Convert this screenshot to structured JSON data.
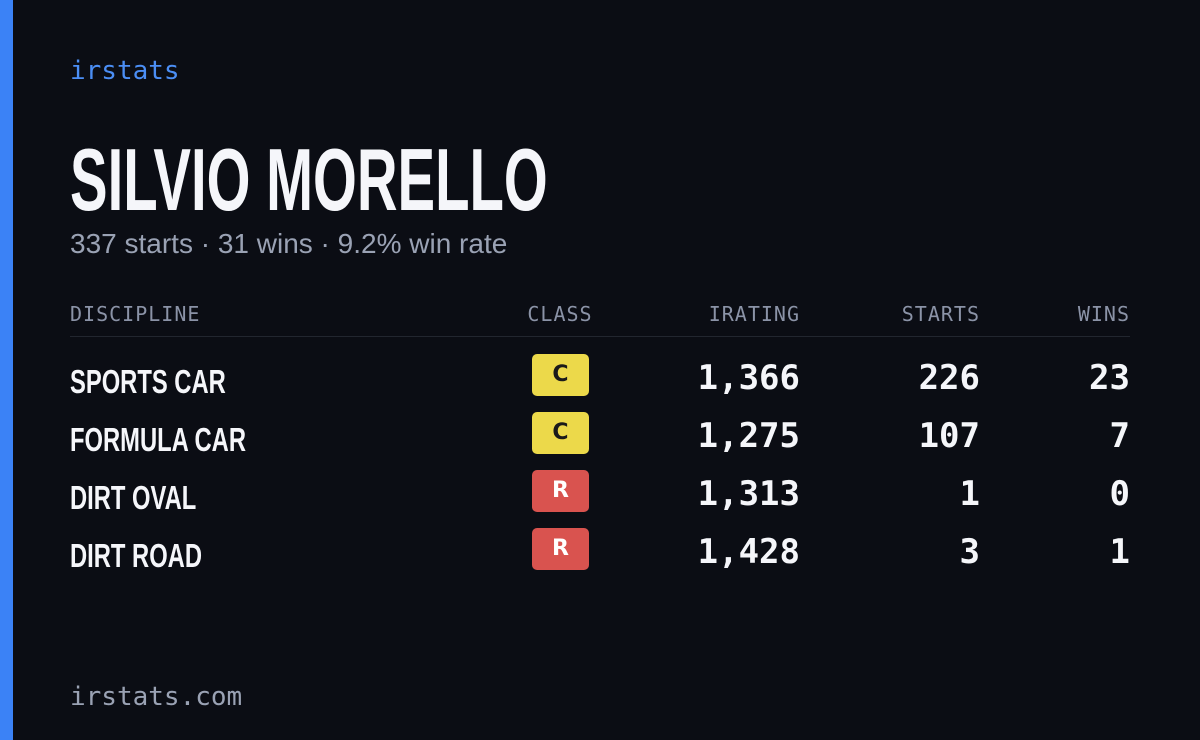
{
  "brand": "irstats",
  "name": "SILVIO MORELLO",
  "summary": "337 starts · 31 wins · 9.2% win rate",
  "table": {
    "headers": [
      "DISCIPLINE",
      "CLASS",
      "IRATING",
      "STARTS",
      "WINS"
    ],
    "rows": [
      {
        "discipline": "SPORTS CAR",
        "class": "C",
        "badge_color": "#ecd94a",
        "badge_text_color": "#1a1a1a",
        "irating": "1,366",
        "starts": "226",
        "wins": "23"
      },
      {
        "discipline": "FORMULA CAR",
        "class": "C",
        "badge_color": "#ecd94a",
        "badge_text_color": "#1a1a1a",
        "irating": "1,275",
        "starts": "107",
        "wins": "7"
      },
      {
        "discipline": "DIRT OVAL",
        "class": "R",
        "badge_color": "#d9534f",
        "badge_text_color": "#ffffff",
        "irating": "1,313",
        "starts": "1",
        "wins": "0"
      },
      {
        "discipline": "DIRT ROAD",
        "class": "R",
        "badge_color": "#d9534f",
        "badge_text_color": "#ffffff",
        "irating": "1,428",
        "starts": "3",
        "wins": "1"
      }
    ]
  },
  "footer": "irstats.com"
}
